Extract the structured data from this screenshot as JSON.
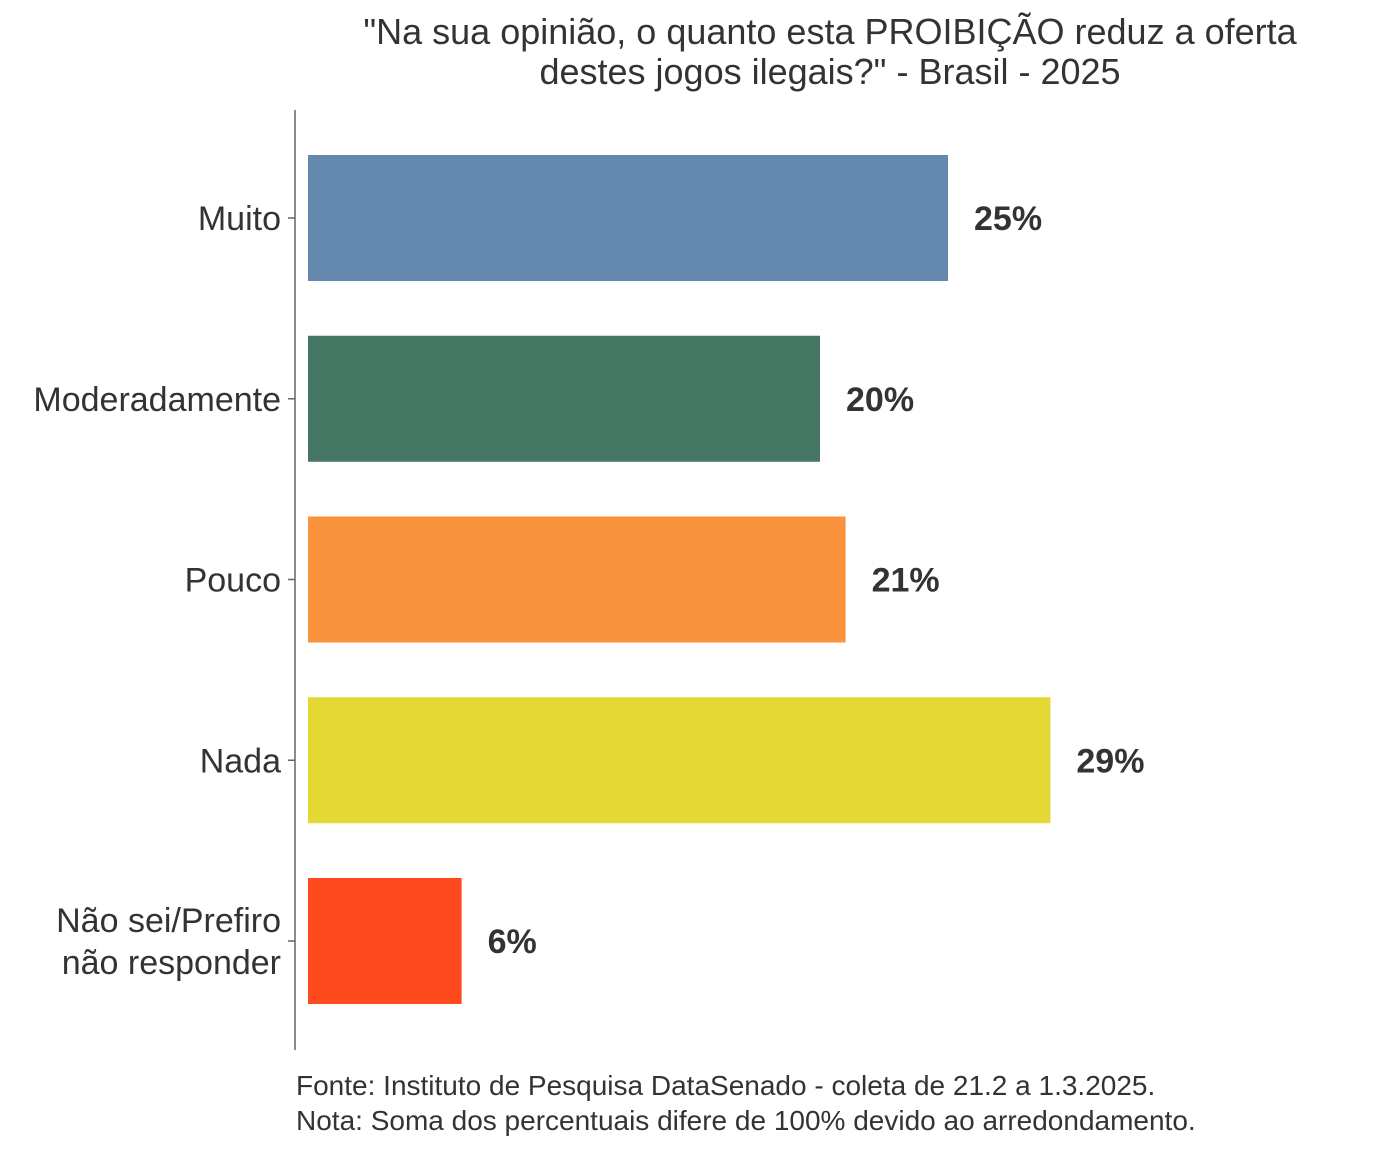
{
  "chart_data": {
    "type": "bar",
    "orientation": "horizontal",
    "title_lines": [
      "\"Na sua opinião, o quanto esta PROIBIÇÃO reduz a oferta",
      "destes jogos ilegais?\" - Brasil - 2025"
    ],
    "categories": [
      [
        "Muito"
      ],
      [
        "Moderadamente"
      ],
      [
        "Pouco"
      ],
      [
        "Nada"
      ],
      [
        "Não sei/Prefiro",
        "não responder"
      ]
    ],
    "values": [
      25,
      20,
      21,
      29,
      6
    ],
    "value_labels": [
      "25%",
      "20%",
      "21%",
      "29%",
      "6%"
    ],
    "colors": [
      "#6488AE",
      "#457563",
      "#FA933E",
      "#E4D835",
      "#FF4A1F"
    ],
    "xlim": [
      0,
      29
    ],
    "grid": false,
    "legend": "none",
    "caption_lines": [
      "Fonte: Instituto de Pesquisa DataSenado - coleta de 21.2 a 1.3.2025.",
      "Nota: Soma dos percentuais difere de 100% devido ao arredondamento."
    ]
  }
}
